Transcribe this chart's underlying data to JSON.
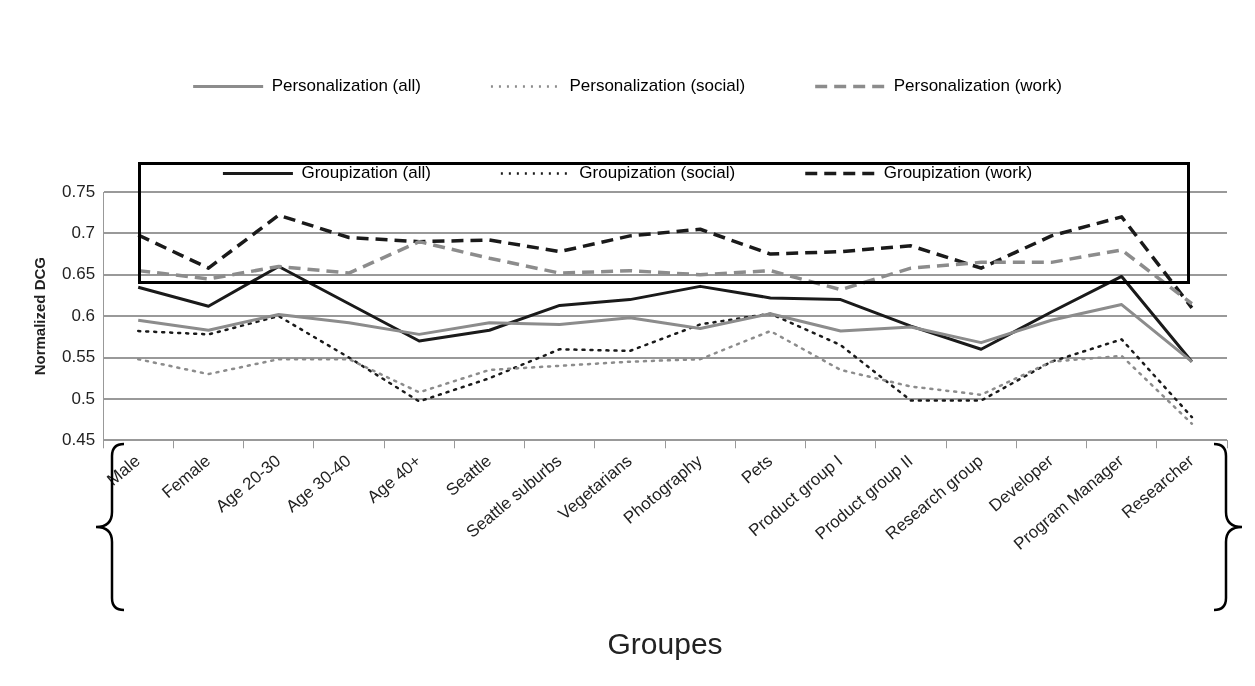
{
  "chart_data": {
    "type": "line",
    "xlabel": "Groupes",
    "ylabel": "Normalized DCG",
    "categories": [
      "Male",
      "Female",
      "Age 20-30",
      "Age 30-40",
      "Age 40+",
      "Seattle",
      "Seattle suburbs",
      "Vegetarians",
      "Photography",
      "Pets",
      "Product group I",
      "Product group II",
      "Research group",
      "Developer",
      "Program Manager",
      "Researcher"
    ],
    "series": [
      {
        "name": "Personalization (all)",
        "color": "#8c8c8c",
        "line_style": "solid",
        "values": [
          0.595,
          0.583,
          0.602,
          0.592,
          0.578,
          0.592,
          0.59,
          0.598,
          0.585,
          0.603,
          0.582,
          0.587,
          0.568,
          0.595,
          0.614,
          0.545
        ]
      },
      {
        "name": "Personalization (social)",
        "color": "#8c8c8c",
        "line_style": "dotted",
        "values": [
          0.548,
          0.53,
          0.548,
          0.548,
          0.508,
          0.535,
          0.54,
          0.545,
          0.548,
          0.582,
          0.535,
          0.515,
          0.505,
          0.545,
          0.552,
          0.47
        ]
      },
      {
        "name": "Personalization (work)",
        "color": "#8c8c8c",
        "line_style": "dashed",
        "values": [
          0.655,
          0.645,
          0.66,
          0.652,
          0.69,
          0.67,
          0.652,
          0.655,
          0.65,
          0.655,
          0.632,
          0.658,
          0.665,
          0.665,
          0.68,
          0.615
        ]
      },
      {
        "name": "Groupization (all)",
        "color": "#1a1a1a",
        "line_style": "solid",
        "values": [
          0.635,
          0.612,
          0.66,
          0.615,
          0.57,
          0.583,
          0.613,
          0.62,
          0.636,
          0.622,
          0.62,
          0.588,
          0.56,
          0.605,
          0.648,
          0.545
        ]
      },
      {
        "name": "Groupization (social)",
        "color": "#1a1a1a",
        "line_style": "dotted",
        "values": [
          0.582,
          0.578,
          0.6,
          0.55,
          0.497,
          0.525,
          0.56,
          0.558,
          0.59,
          0.603,
          0.565,
          0.498,
          0.498,
          0.545,
          0.572,
          0.478
        ]
      },
      {
        "name": "Groupization (work)",
        "color": "#1a1a1a",
        "line_style": "dashed",
        "values": [
          0.698,
          0.658,
          0.722,
          0.695,
          0.69,
          0.692,
          0.678,
          0.697,
          0.705,
          0.675,
          0.678,
          0.685,
          0.658,
          0.697,
          0.72,
          0.61
        ]
      }
    ],
    "ylim": [
      0.45,
      0.75
    ],
    "yticks": [
      0.45,
      0.5,
      0.55,
      0.6,
      0.65,
      0.7,
      0.75
    ],
    "grid": "y",
    "legend": "top",
    "marker": "none"
  }
}
